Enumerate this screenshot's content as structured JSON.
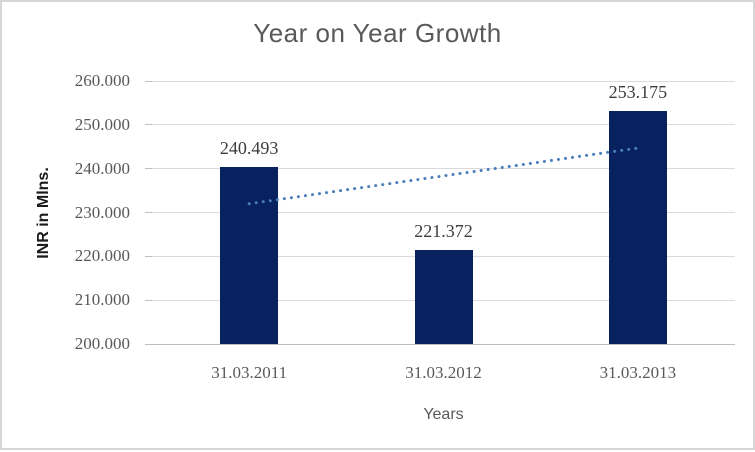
{
  "frame": {
    "background_color": "#ffffff",
    "border_color": "#d6d6d6"
  },
  "chart_data": {
    "type": "bar",
    "title": "Year on Year Growth",
    "xlabel": "Years",
    "ylabel": "INR in Mlns.",
    "categories": [
      "31.03.2011",
      "31.03.2012",
      "31.03.2013"
    ],
    "values": [
      240.493,
      221.372,
      253.175
    ],
    "value_labels": [
      "240.493",
      "221.372",
      "253.175"
    ],
    "ylim": [
      200,
      260
    ],
    "ytick_step": 10,
    "ytick_labels": [
      "200.000",
      "210.000",
      "220.000",
      "230.000",
      "240.000",
      "250.000",
      "260.000"
    ],
    "grid": true,
    "legend": "none",
    "colors": {
      "bar": "#07225f",
      "gridline": "#dadada",
      "axis_line": "#bfbfbf",
      "title_text": "#595959",
      "tick_text": "#595959",
      "data_label_text": "#3c3c3c",
      "trendline": "#4a7ebb"
    },
    "trendline": {
      "type": "linear",
      "style": "dotted",
      "color": "#4a7ebb",
      "start_value": 232.0,
      "end_value": 244.7
    }
  }
}
